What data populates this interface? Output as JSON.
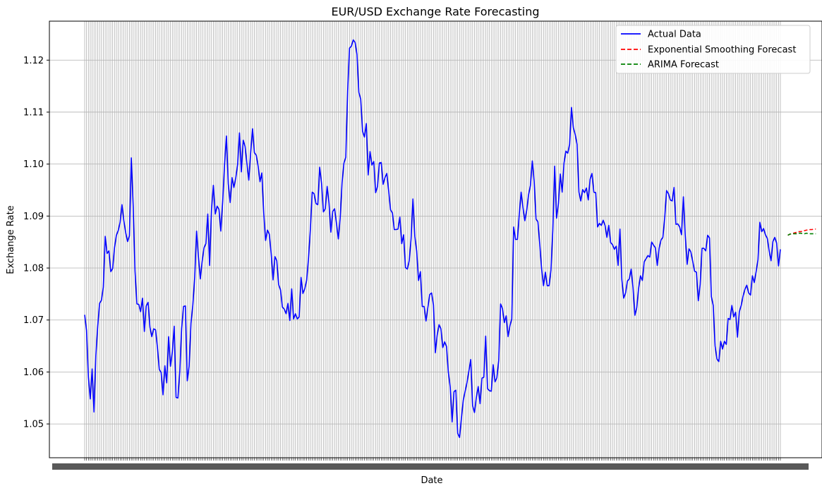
{
  "chart_data": {
    "type": "line",
    "title": "EUR/USD Exchange Rate Forecasting",
    "xlabel": "Date",
    "ylabel": "Exchange Rate",
    "ylim": [
      1.0435,
      1.1275
    ],
    "yticks": [
      1.05,
      1.06,
      1.07,
      1.08,
      1.09,
      1.1,
      1.11,
      1.12
    ],
    "ytick_labels": [
      "1.05",
      "1.06",
      "1.07",
      "1.08",
      "1.09",
      "1.10",
      "1.11",
      "1.12"
    ],
    "grid": true,
    "legend_position": "top-right",
    "x_note": "Dense overlapping daily date tick labels; one vertical gridline per observation",
    "series": [
      {
        "name": "Actual Data",
        "color": "#0000ff",
        "style": "solid",
        "values": [
          1.071,
          1.068,
          1.059,
          1.0548,
          1.0606,
          1.0523,
          1.0632,
          1.0688,
          1.0732,
          1.0738,
          1.0763,
          1.0861,
          1.0828,
          1.0833,
          1.0793,
          1.0799,
          1.0839,
          1.0863,
          1.0872,
          1.0888,
          1.0922,
          1.0891,
          1.0868,
          1.0851,
          1.0862,
          1.1012,
          1.0921,
          1.0794,
          1.0731,
          1.073,
          1.0716,
          1.0742,
          1.0678,
          1.0727,
          1.0734,
          1.0686,
          1.0668,
          1.0683,
          1.0681,
          1.0648,
          1.0605,
          1.0599,
          1.0556,
          1.0612,
          1.0579,
          1.0668,
          1.0611,
          1.0638,
          1.0688,
          1.0551,
          1.055,
          1.0601,
          1.0684,
          1.0726,
          1.0727,
          1.0583,
          1.0611,
          1.0694,
          1.0729,
          1.0782,
          1.0871,
          1.0821,
          1.0779,
          1.0813,
          1.0839,
          1.0847,
          1.0904,
          1.0805,
          1.0912,
          1.0959,
          1.0904,
          1.0919,
          1.0913,
          1.0871,
          1.0928,
          1.0999,
          1.1054,
          1.0962,
          1.0926,
          1.0974,
          1.0955,
          1.0973,
          1.0999,
          1.106,
          1.0985,
          1.1046,
          1.1034,
          1.1001,
          1.0969,
          1.1022,
          1.1068,
          1.1022,
          1.1017,
          1.0996,
          1.0966,
          1.0983,
          1.0906,
          1.0853,
          1.0873,
          1.0865,
          1.0828,
          1.0777,
          1.0822,
          1.0814,
          1.0768,
          1.0758,
          1.0725,
          1.0721,
          1.0712,
          1.0732,
          1.0699,
          1.076,
          1.0702,
          1.0712,
          1.0702,
          1.0706,
          1.0782,
          1.0751,
          1.076,
          1.0776,
          1.0818,
          1.0874,
          1.0946,
          1.0943,
          1.0924,
          1.0922,
          1.0994,
          1.0963,
          1.0908,
          1.0914,
          1.0957,
          1.0925,
          1.0869,
          1.0909,
          1.0914,
          1.0886,
          1.0856,
          1.0896,
          1.0964,
          1.1002,
          1.1013,
          1.1141,
          1.1223,
          1.1227,
          1.1239,
          1.1234,
          1.1211,
          1.1138,
          1.1125,
          1.1063,
          1.1052,
          1.1078,
          1.0979,
          1.1024,
          1.0998,
          1.1005,
          1.0945,
          1.0957,
          1.1002,
          1.1003,
          1.0961,
          1.0974,
          1.0982,
          1.0948,
          1.0912,
          1.0906,
          1.0874,
          1.0874,
          1.0875,
          1.0898,
          1.0847,
          1.0864,
          1.0801,
          1.0798,
          1.0814,
          1.0856,
          1.0933,
          1.0861,
          1.0833,
          1.0776,
          1.0793,
          1.0726,
          1.0726,
          1.0698,
          1.0724,
          1.0749,
          1.0752,
          1.0729,
          1.0637,
          1.0671,
          1.0691,
          1.0683,
          1.0647,
          1.0658,
          1.0649,
          1.0599,
          1.0571,
          1.0504,
          1.0562,
          1.0565,
          1.0482,
          1.0474,
          1.0511,
          1.0546,
          1.0563,
          1.058,
          1.0602,
          1.0624,
          1.0535,
          1.0522,
          1.0551,
          1.0572,
          1.0539,
          1.0588,
          1.059,
          1.0669,
          1.0568,
          1.0564,
          1.0563,
          1.0614,
          1.0581,
          1.0589,
          1.0622,
          1.0731,
          1.0722,
          1.0695,
          1.0708,
          1.0668,
          1.0689,
          1.0702,
          1.0879,
          1.0855,
          1.0855,
          1.0903,
          1.0946,
          1.0916,
          1.0891,
          1.0911,
          1.0941,
          1.0959,
          1.1006,
          1.0967,
          1.0894,
          1.0889,
          1.0846,
          1.0798,
          1.0766,
          1.0792,
          1.0766,
          1.0766,
          1.0796,
          1.0873,
          1.0996,
          1.0896,
          1.0924,
          1.0981,
          1.0946,
          1.1002,
          1.1025,
          1.1021,
          1.1038,
          1.1109,
          1.107,
          1.1057,
          1.1038,
          1.0946,
          1.0929,
          1.0951,
          1.0945,
          1.0954,
          1.0931,
          1.0971,
          1.0982,
          1.0946,
          1.0945,
          1.0879,
          1.0886,
          1.0882,
          1.0892,
          1.0882,
          1.0859,
          1.0882,
          1.0849,
          1.0845,
          1.0836,
          1.0842,
          1.0805,
          1.0875,
          1.0778,
          1.0742,
          1.0752,
          1.0775,
          1.0779,
          1.0798,
          1.0762,
          1.0709,
          1.0724,
          1.0761,
          1.0785,
          1.0776,
          1.0812,
          1.0818,
          1.0824,
          1.0821,
          1.085,
          1.0844,
          1.0839,
          1.0805,
          1.0838,
          1.0854,
          1.0859,
          1.0897,
          1.0949,
          1.0943,
          1.0931,
          1.0929,
          1.0955,
          1.0884,
          1.0885,
          1.0879,
          1.0864,
          1.0937,
          1.0863,
          1.0807,
          1.0837,
          1.0831,
          1.0813,
          1.0794,
          1.0792,
          1.0737,
          1.0768,
          1.0838,
          1.0838,
          1.0833,
          1.0863,
          1.0858,
          1.0745,
          1.0728,
          1.065,
          1.0625,
          1.062,
          1.0659,
          1.0644,
          1.0659,
          1.0653,
          1.0703,
          1.0701,
          1.0728,
          1.0706,
          1.0715,
          1.0667,
          1.0716,
          1.0728,
          1.0746,
          1.0759,
          1.0767,
          1.0752,
          1.0748,
          1.0785,
          1.0772,
          1.0793,
          1.0816,
          1.0888,
          1.087,
          1.0876,
          1.0864,
          1.0857,
          1.0833,
          1.0814,
          1.0851,
          1.0859,
          1.0848,
          1.0804,
          1.0836
        ]
      },
      {
        "name": "Exponential Smoothing Forecast",
        "color": "#ff0000",
        "style": "dashed",
        "x_start_index": 377,
        "values": [
          1.0863,
          1.0865,
          1.0866,
          1.0867,
          1.0868,
          1.0869,
          1.087,
          1.087,
          1.0871,
          1.0872,
          1.0873,
          1.0873,
          1.0874,
          1.0874,
          1.0875,
          1.0875
        ]
      },
      {
        "name": "ARIMA Forecast",
        "color": "#008000",
        "style": "dashed",
        "x_start_index": 377,
        "values": [
          1.0863,
          1.0865,
          1.0866,
          1.0866,
          1.0866,
          1.0866,
          1.0867,
          1.0867,
          1.0866,
          1.0866,
          1.0867,
          1.0866,
          1.0866,
          1.0866,
          1.0866,
          1.0866
        ]
      }
    ]
  }
}
